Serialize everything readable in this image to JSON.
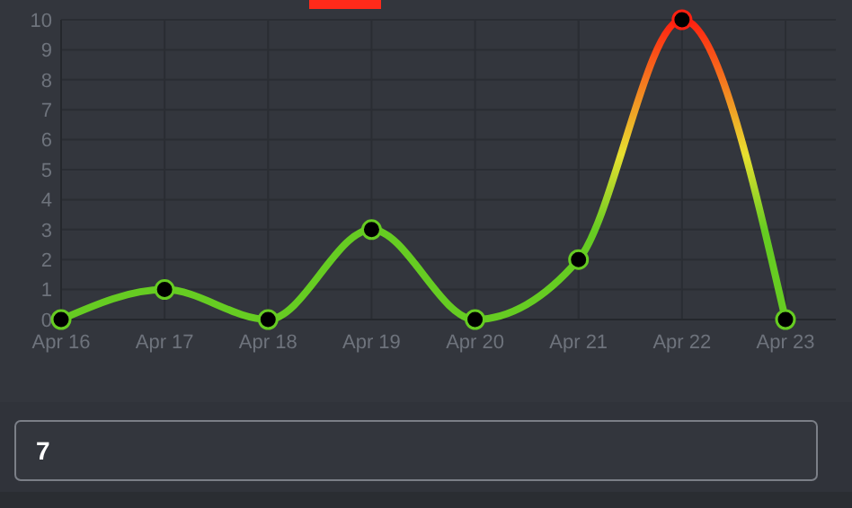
{
  "chart_data": {
    "type": "line",
    "categories": [
      "Apr 16",
      "Apr 17",
      "Apr 18",
      "Apr 19",
      "Apr 20",
      "Apr 21",
      "Apr 22",
      "Apr 23"
    ],
    "series": [
      {
        "color": "#66cc22",
        "values": [
          0,
          1,
          0,
          3,
          0,
          2,
          10,
          0
        ]
      }
    ],
    "ylim": [
      0,
      10
    ],
    "yticks": [
      0,
      1,
      2,
      3,
      4,
      5,
      6,
      7,
      8,
      9,
      10
    ],
    "grid": true,
    "marker": "circle",
    "line_style": "solid",
    "annotations": [
      "7"
    ]
  }
}
